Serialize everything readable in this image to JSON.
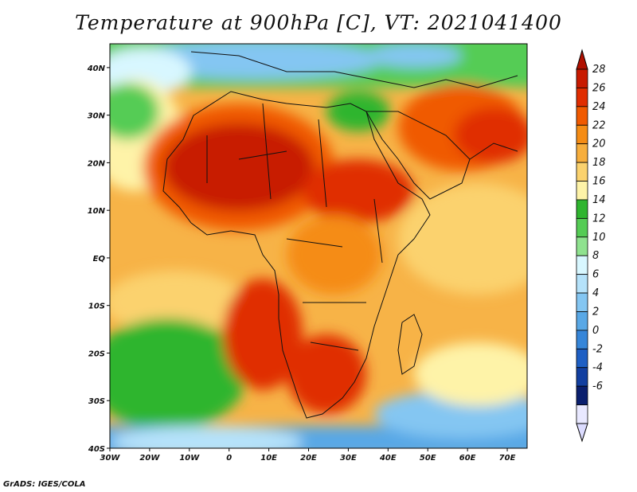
{
  "title": "Temperature at 900hPa [C], VT: 2021041400",
  "credit": "GrADS: IGES/COLA",
  "map": {
    "lon_range": [
      -30,
      75
    ],
    "lat_range": [
      -40,
      45
    ],
    "lon_labels": [
      "30W",
      "20W",
      "10W",
      "0",
      "10E",
      "20E",
      "30E",
      "40E",
      "50E",
      "60E",
      "70E"
    ],
    "lat_labels": [
      "40N",
      "30N",
      "20N",
      "10N",
      "EQ",
      "10S",
      "20S",
      "30S",
      "40S"
    ],
    "field": "temperature",
    "level": "900hPa",
    "units": "C"
  },
  "colorbar": {
    "labels": [
      "28",
      "26",
      "24",
      "22",
      "20",
      "18",
      "16",
      "14",
      "12",
      "10",
      "8",
      "6",
      "4",
      "2",
      "0",
      "-2",
      "-4",
      "-6"
    ],
    "colors": [
      "#c81a00",
      "#e02d00",
      "#f05a00",
      "#f58c14",
      "#f7ae3c",
      "#fbd26e",
      "#fef3a8",
      "#2fb52f",
      "#55cc55",
      "#8fe28f",
      "#d8f7ff",
      "#b5e2fa",
      "#84c6f2",
      "#59a8e6",
      "#3686d9",
      "#1e5fc4",
      "#123fa0",
      "#0a1f6e",
      "#e8e8ff"
    ],
    "arrow_top_color": "#b01000",
    "arrow_bottom_color": "#dcdcff"
  },
  "colors": {
    "ocean_warm": "#f7b347",
    "ocean_mid": "#fbd26e",
    "hot": "#c81a00",
    "cold": "#3686d9",
    "green": "#2fb52f"
  }
}
